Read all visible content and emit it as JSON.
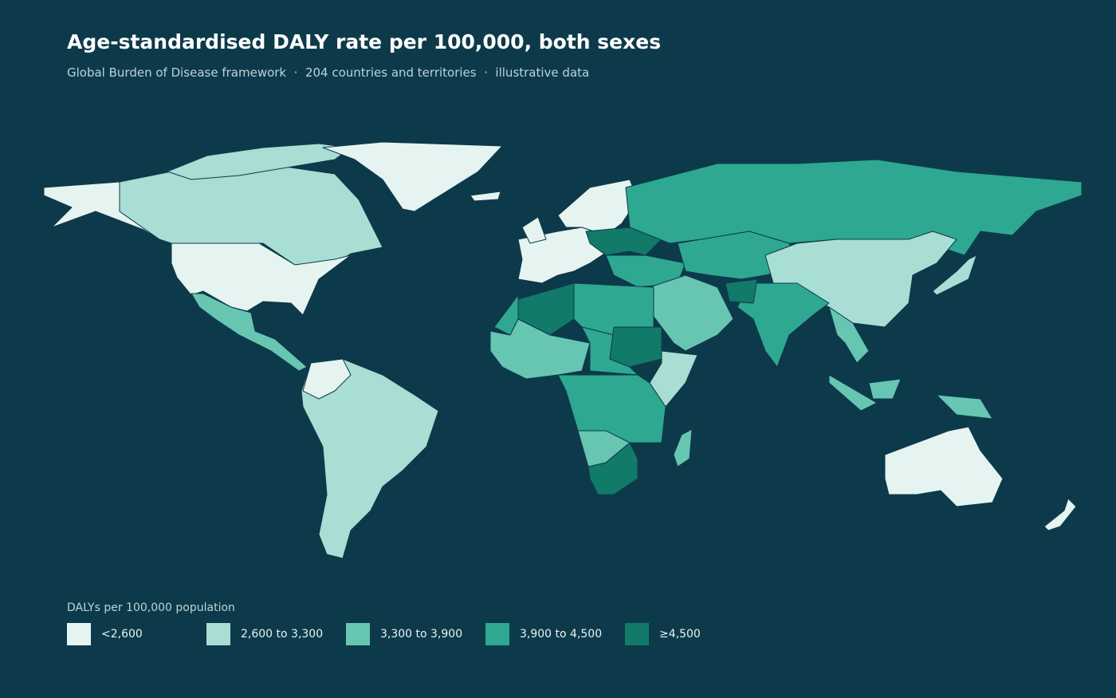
{
  "title": "Age-standardised DALY rate per 100,000, both sexes",
  "subtitle": "Global Burden of Disease framework  ·  204 countries and territories  ·  illustrative data",
  "legend": {
    "title": "DALYs per 100,000 population",
    "classes": [
      {
        "label": "<2,600",
        "color": "#e6f4f1"
      },
      {
        "label": "2,600 to 3,300",
        "color": "#a8ded3"
      },
      {
        "label": "3,300 to 3,900",
        "color": "#66c6b2"
      },
      {
        "label": "3,900 to 4,500",
        "color": "#2ea891"
      },
      {
        "label": "≥4,500",
        "color": "#117a68"
      }
    ]
  }
}
